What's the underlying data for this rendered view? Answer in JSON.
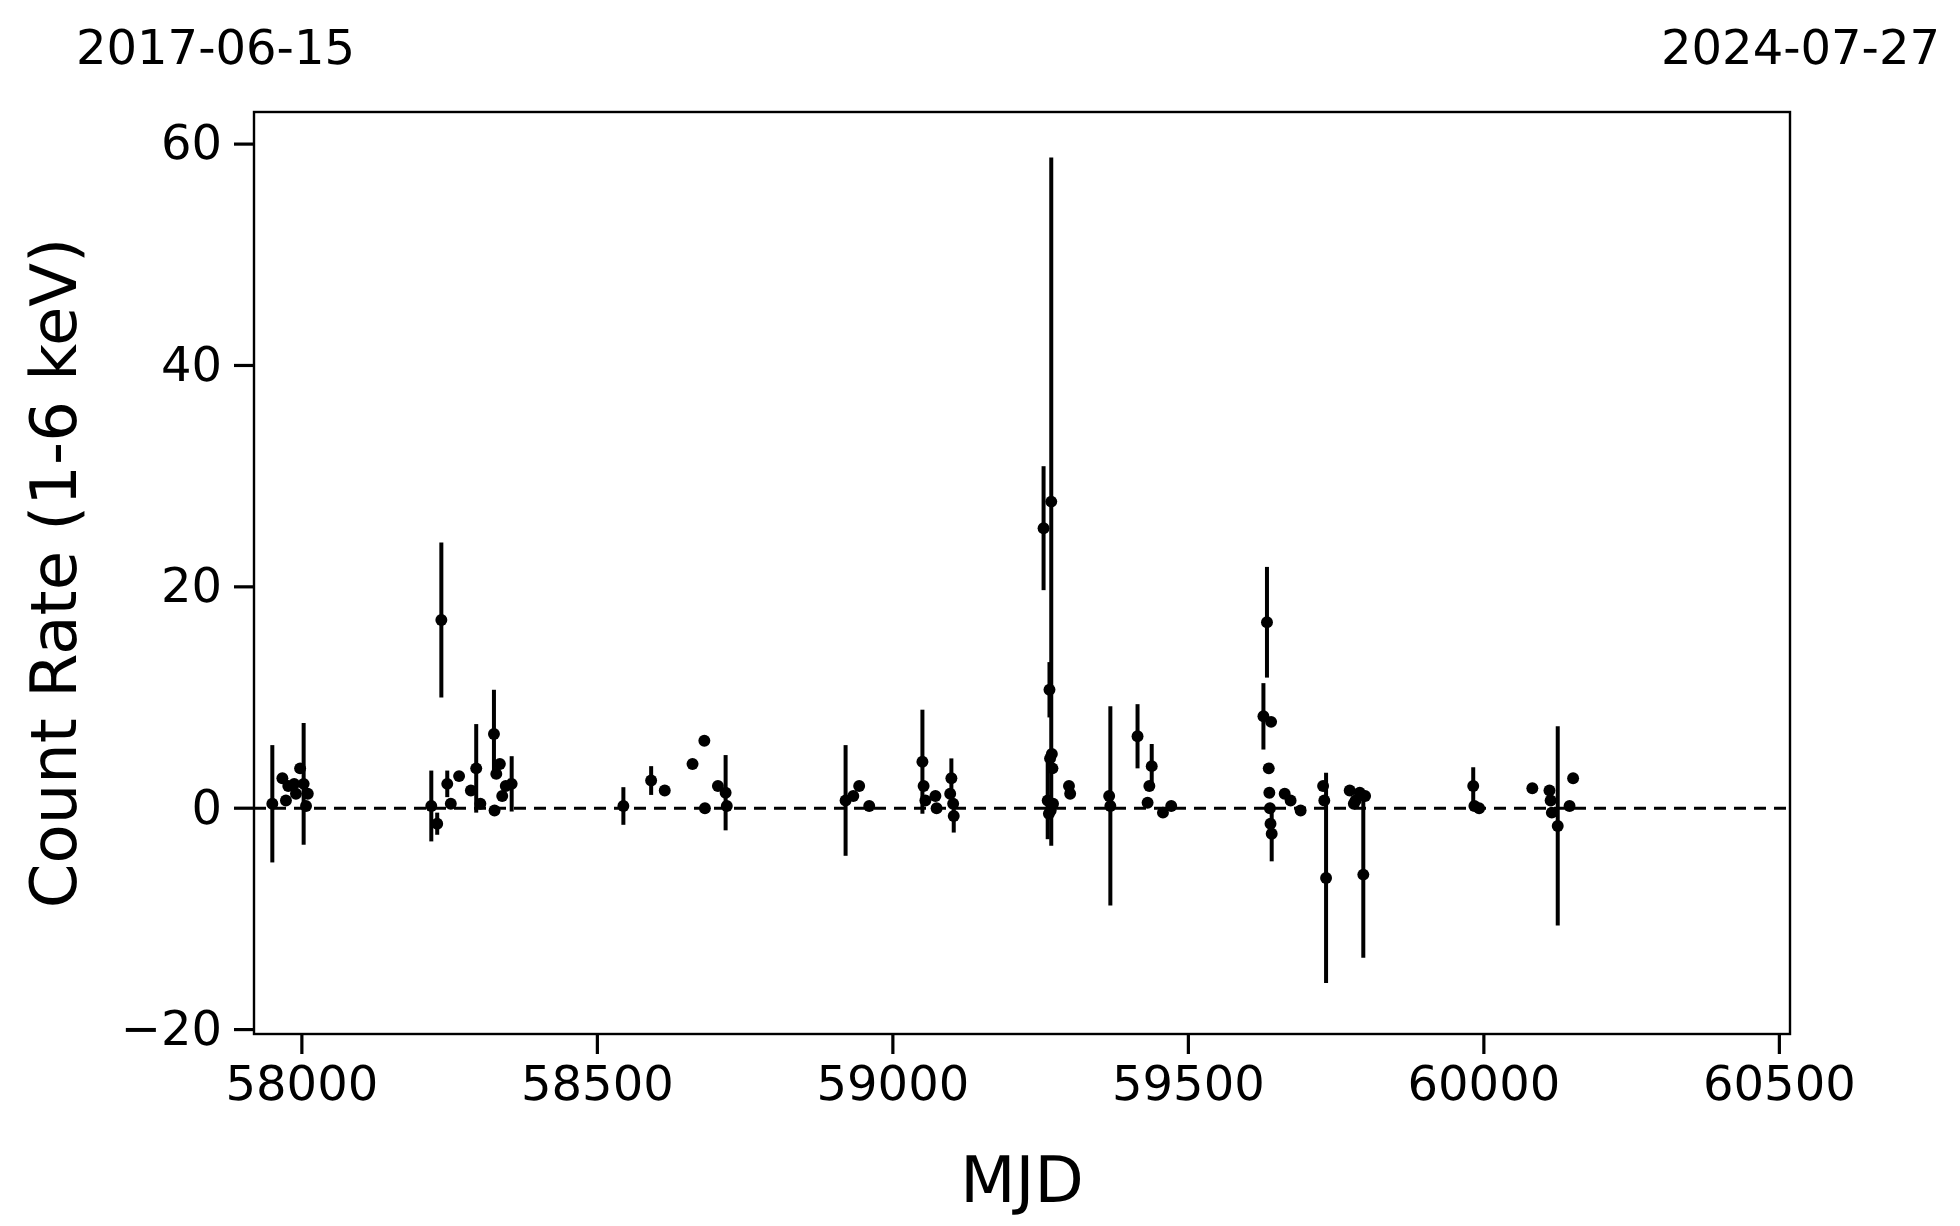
{
  "chart_data": {
    "type": "scatter",
    "xlabel": "MJD",
    "ylabel": "Count Rate (1-6 keV)",
    "xlim": [
      57919,
      60518
    ],
    "xticks": [
      58000,
      58500,
      59000,
      59500,
      60000,
      60500
    ],
    "annotations": [
      "2017-06-15",
      "2024-07-27"
    ],
    "ylim": [
      -20.4,
      62.9
    ],
    "yticks": [
      -20,
      0,
      20,
      40,
      60
    ],
    "grid": false,
    "marker": "circle",
    "ref_lines": [
      {
        "axis": "y",
        "value": 0,
        "label": null,
        "color": "#000000",
        "line_style": "dashed"
      }
    ],
    "series": [
      {
        "color": "#000000",
        "x": [
          57950,
          57967,
          57973,
          57977,
          57987,
          57990,
          57997,
          58003,
          58007,
          58010,
          58219,
          58229,
          58236,
          58246,
          58252,
          58266,
          58286,
          58295,
          58302,
          58325,
          58326,
          58329,
          58335,
          58339,
          58345,
          58355,
          58544,
          58591,
          58614,
          58661,
          58681,
          58682,
          58704,
          58717,
          58719,
          58920,
          58933,
          58943,
          58960,
          59050,
          59052,
          59055,
          59072,
          59074,
          59097,
          59099,
          59102,
          59103,
          59255,
          59262,
          59264,
          59265,
          59266,
          59267,
          59268,
          59269,
          59270,
          59271,
          59298,
          59300,
          59366,
          59368,
          59414,
          59431,
          59434,
          59438,
          59457,
          59471,
          59627,
          59633,
          59636,
          59637,
          59638,
          59639,
          59640,
          59641,
          59663,
          59673,
          59690,
          59728,
          59730,
          59733,
          59773,
          59780,
          59783,
          59790,
          59796,
          59799,
          59982,
          59984,
          59992,
          60082,
          60111,
          60113,
          60115,
          60125,
          60145,
          60151
        ],
        "values": [
          0.4,
          2.7,
          0.7,
          2.0,
          2.2,
          1.3,
          3.6,
          2.2,
          0.2,
          1.3,
          0.2,
          -1.4,
          17.0,
          2.2,
          0.4,
          2.9,
          1.6,
          3.6,
          0.4,
          6.7,
          -0.2,
          3.1,
          4.0,
          1.1,
          2.0,
          2.2,
          0.2,
          2.5,
          1.6,
          4.0,
          6.1,
          0.0,
          2.0,
          1.4,
          0.2,
          0.7,
          1.1,
          2.0,
          0.2,
          4.2,
          2.0,
          0.7,
          1.1,
          0.0,
          1.3,
          2.7,
          0.4,
          -0.7,
          25.3,
          0.7,
          -0.5,
          10.7,
          4.5,
          -0.2,
          27.7,
          4.9,
          3.6,
          0.4,
          2.0,
          1.3,
          1.1,
          0.2,
          6.5,
          0.5,
          2.0,
          3.8,
          -0.4,
          0.2,
          8.3,
          16.8,
          3.6,
          1.4,
          0.0,
          -1.4,
          7.8,
          -2.3,
          1.3,
          0.7,
          -0.2,
          2.0,
          0.7,
          -6.3,
          1.6,
          0.4,
          0.7,
          1.4,
          -6.0,
          1.1,
          2.0,
          0.2,
          0.0,
          1.8,
          1.6,
          0.7,
          -0.4,
          -1.6,
          0.2,
          2.7
        ],
        "errors": [
          5.3,
          null,
          null,
          null,
          null,
          null,
          null,
          5.5,
          null,
          null,
          3.2,
          1.0,
          7.0,
          1.2,
          null,
          null,
          null,
          4.0,
          null,
          4.0,
          null,
          null,
          null,
          null,
          null,
          2.5,
          1.7,
          1.3,
          null,
          null,
          null,
          null,
          null,
          3.4,
          null,
          5.0,
          null,
          null,
          null,
          4.7,
          null,
          null,
          null,
          null,
          null,
          1.8,
          null,
          1.5,
          5.6,
          3.5,
          null,
          2.5,
          null,
          null,
          31.1,
          null,
          null,
          null,
          null,
          null,
          null,
          9.0,
          2.9,
          null,
          null,
          2.0,
          null,
          null,
          3.0,
          5.0,
          null,
          null,
          null,
          null,
          null,
          2.5,
          null,
          null,
          null,
          null,
          null,
          9.5,
          null,
          null,
          null,
          null,
          7.5,
          null,
          1.7,
          null,
          null,
          null,
          null,
          null,
          null,
          9.0,
          null,
          null
        ]
      }
    ]
  }
}
